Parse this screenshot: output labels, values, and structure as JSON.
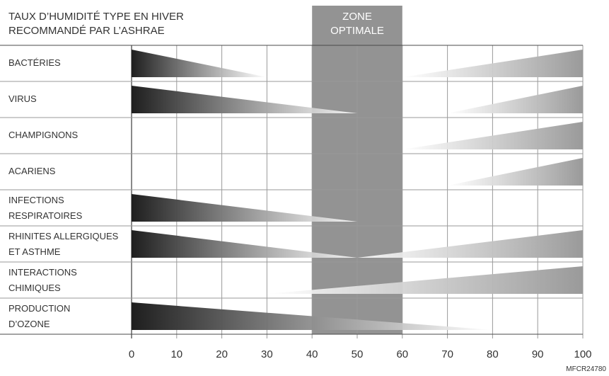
{
  "chart_data": {
    "type": "bar",
    "title_line1": "TAUX D’HUMIDITÉ TYPE EN HIVER",
    "title_line2": "RECOMMANDÉ PAR L’ASHRAE",
    "zone_line1": "ZONE",
    "zone_line2": "OPTIMALE",
    "optimal_range": [
      40,
      60
    ],
    "xlim": [
      0,
      100
    ],
    "xticks": [
      "0",
      "10",
      "20",
      "30",
      "40",
      "50",
      "60",
      "70",
      "80",
      "90",
      "100"
    ],
    "grid": true,
    "credit": "MFCR24780",
    "rows": [
      {
        "label_lines": [
          "BACTÉRIES"
        ],
        "wedges": [
          {
            "dir": "dec",
            "start": 0,
            "end": 30
          },
          {
            "dir": "inc",
            "start": 60,
            "end": 100
          }
        ]
      },
      {
        "label_lines": [
          "VIRUS"
        ],
        "wedges": [
          {
            "dir": "dec",
            "start": 0,
            "end": 50
          },
          {
            "dir": "inc",
            "start": 70,
            "end": 100
          }
        ]
      },
      {
        "label_lines": [
          "CHAMPIGNONS"
        ],
        "wedges": [
          {
            "dir": "inc",
            "start": 60,
            "end": 100
          }
        ]
      },
      {
        "label_lines": [
          "ACARIENS"
        ],
        "wedges": [
          {
            "dir": "inc",
            "start": 70,
            "end": 100
          }
        ]
      },
      {
        "label_lines": [
          "INFECTIONS",
          "RESPIRATOIRES"
        ],
        "wedges": [
          {
            "dir": "dec",
            "start": 0,
            "end": 50
          }
        ]
      },
      {
        "label_lines": [
          "RHINITES ALLERGIQUES",
          "ET ASTHME"
        ],
        "wedges": [
          {
            "dir": "dec",
            "start": 0,
            "end": 50
          },
          {
            "dir": "inc",
            "start": 50,
            "end": 100
          }
        ]
      },
      {
        "label_lines": [
          "INTERACTIONS",
          "CHIMIQUES"
        ],
        "wedges": [
          {
            "dir": "inc",
            "start": 30,
            "end": 100
          }
        ]
      },
      {
        "label_lines": [
          "PRODUCTION",
          "D’OZONE"
        ],
        "wedges": [
          {
            "dir": "dec",
            "start": 0,
            "end": 80
          }
        ]
      }
    ],
    "colors": {
      "dark": "#1e1e1e",
      "light": "#ffffff",
      "zone": "#939393",
      "grid": "#9a9a9a",
      "frame": "#4a4a4a"
    }
  }
}
